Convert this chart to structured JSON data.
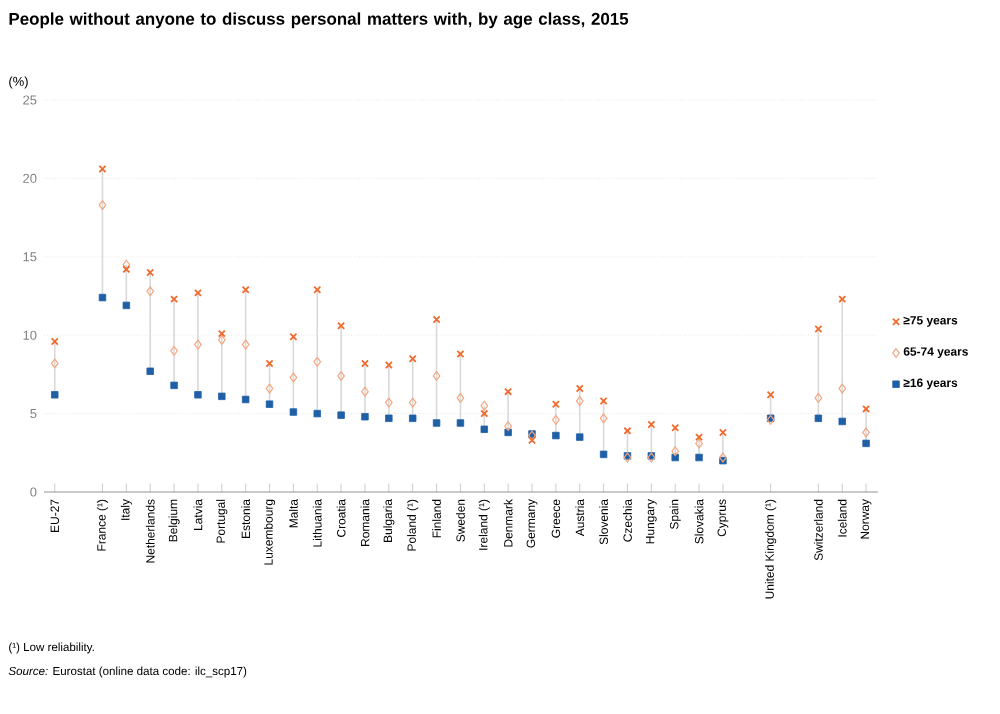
{
  "chart_data": {
    "type": "scatter",
    "title": "People without anyone to discuss personal matters with, by age class, 2015",
    "ylabel": "(%)",
    "categories": [
      "EU-27",
      null,
      "France (¹)",
      "Italy",
      "Netherlands",
      "Belgium",
      "Latvia",
      "Portugal",
      "Estonia",
      "Luxembourg",
      "Malta",
      "Lithuania",
      "Croatia",
      "Romania",
      "Bulgaria",
      "Poland (¹)",
      "Finland",
      "Sweden",
      "Ireland (¹)",
      "Denmark",
      "Germany",
      "Greece",
      "Austria",
      "Slovenia",
      "Czechia",
      "Hungary",
      "Spain",
      "Slovakia",
      "Cyprus",
      null,
      "United Kingdom (¹)",
      null,
      "Switzerland",
      "Iceland",
      "Norway"
    ],
    "series": [
      {
        "name": "≥75 years",
        "color": "#f06a2c",
        "marker": "cross",
        "values": [
          9.6,
          null,
          20.6,
          14.2,
          14.0,
          12.3,
          12.7,
          10.1,
          12.9,
          8.2,
          9.9,
          12.9,
          10.6,
          8.2,
          8.1,
          8.5,
          11.0,
          8.8,
          5.0,
          6.4,
          3.3,
          5.6,
          6.6,
          5.8,
          3.9,
          4.3,
          4.1,
          3.5,
          3.8,
          null,
          6.2,
          null,
          10.4,
          12.3,
          5.3
        ]
      },
      {
        "name": "65-74 years",
        "color": "#f5a57e",
        "marker": "diamond",
        "values": [
          8.2,
          null,
          18.3,
          14.5,
          12.8,
          9.0,
          9.4,
          9.7,
          9.4,
          6.6,
          7.3,
          8.3,
          7.4,
          6.4,
          5.7,
          5.7,
          7.4,
          6.0,
          5.5,
          4.2,
          3.6,
          4.6,
          5.8,
          4.7,
          2.2,
          2.2,
          2.6,
          3.1,
          2.2,
          null,
          4.6,
          null,
          6.0,
          6.6,
          3.8
        ]
      },
      {
        "name": "≥16 years",
        "color": "#1f5fa6",
        "marker": "square",
        "values": [
          6.2,
          null,
          12.4,
          11.9,
          7.7,
          6.8,
          6.2,
          6.1,
          5.9,
          5.6,
          5.1,
          5.0,
          4.9,
          4.8,
          4.7,
          4.7,
          4.4,
          4.4,
          4.0,
          3.8,
          3.7,
          3.6,
          3.5,
          2.4,
          2.3,
          2.3,
          2.2,
          2.2,
          2.0,
          null,
          4.7,
          null,
          4.7,
          4.5,
          3.1
        ]
      }
    ],
    "ylim": [
      0,
      25
    ],
    "yticks": [
      0,
      5,
      10,
      15,
      20,
      25
    ],
    "grid": "y",
    "legend": "right",
    "annotations": [
      "(¹) Low reliability.",
      "*Source:* Eurostat (online data code: ilc_scp17)"
    ]
  }
}
